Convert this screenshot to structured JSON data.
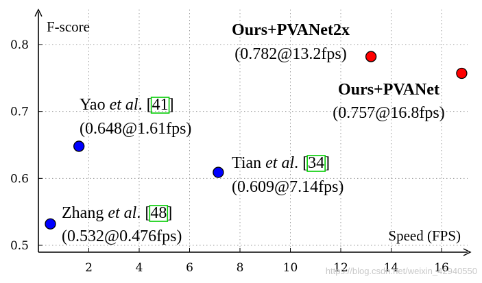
{
  "chart_data": {
    "type": "scatter",
    "xlabel": "Speed (FPS)",
    "ylabel": "F-score",
    "xlim": [
      0,
      17.5
    ],
    "ylim": [
      0.49,
      0.84
    ],
    "xticks": [
      "2",
      "4",
      "6",
      "8",
      "10",
      "12",
      "14",
      "16"
    ],
    "yticks": [
      "0.5",
      "0.6",
      "0.7",
      "0.8"
    ],
    "grid": "dotted",
    "points": [
      {
        "name": "zhang",
        "x": 0.476,
        "y": 0.532,
        "color": "#0000ff",
        "label_pre": "Zhang ",
        "label_it": "et al",
        "label_post": ". [",
        "ref": "48",
        "label_end": "]",
        "value_text": "(0.532@0.476fps)",
        "label_side": "right"
      },
      {
        "name": "yao",
        "x": 1.61,
        "y": 0.648,
        "color": "#0000ff",
        "label_pre": "Yao ",
        "label_it": "et al",
        "label_post": ". [",
        "ref": "41",
        "label_end": "]",
        "value_text": "(0.648@1.61fps)",
        "label_side": "above"
      },
      {
        "name": "tian",
        "x": 7.14,
        "y": 0.609,
        "color": "#0000ff",
        "label_pre": "Tian ",
        "label_it": "et al",
        "label_post": ". [",
        "ref": "34",
        "label_end": "]",
        "value_text": "(0.609@7.14fps)",
        "label_side": "right"
      },
      {
        "name": "pvanet2x",
        "x": 13.2,
        "y": 0.782,
        "color": "#ff0000",
        "label_bold": "Ours+PVANet2x",
        "value_text": "(0.782@13.2fps)",
        "label_side": "left-above"
      },
      {
        "name": "pvanet",
        "x": 16.8,
        "y": 0.757,
        "color": "#ff0000",
        "label_bold": "Ours+PVANet",
        "value_text": "(0.757@16.8fps)",
        "label_side": "left-below"
      }
    ],
    "ref_box_color": "#00cc00"
  },
  "watermark": "https://blog.csdn.net/weixin_42940550"
}
